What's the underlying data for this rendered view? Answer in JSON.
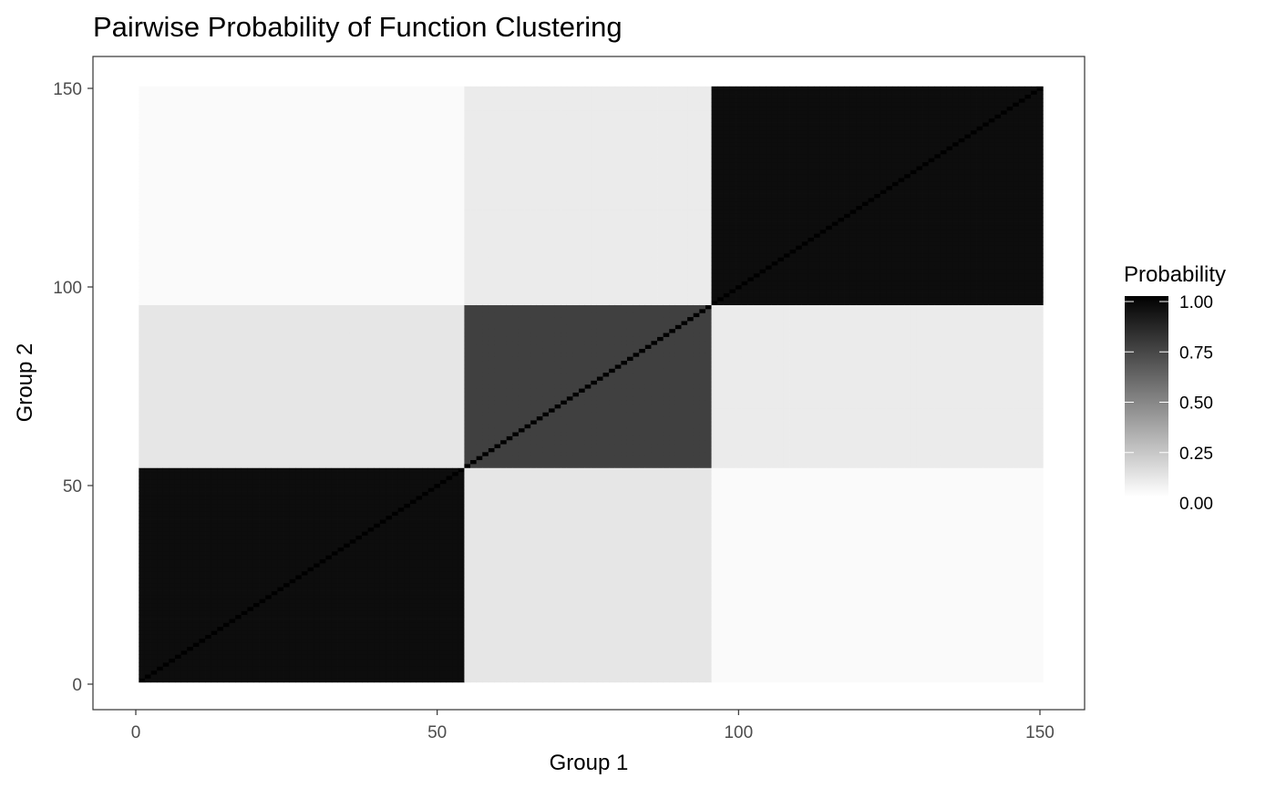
{
  "chart_data": {
    "type": "heatmap",
    "title": "Pairwise Probability of Function Clustering",
    "xlabel": "Group 1",
    "ylabel": "Group 2",
    "n": 150,
    "xlim": [
      0,
      150
    ],
    "ylim": [
      0,
      150
    ],
    "x_ticks": [
      0,
      50,
      100,
      150
    ],
    "y_ticks": [
      0,
      50,
      100,
      150
    ],
    "x_tick_labels": [
      "0",
      "50",
      "100",
      "150"
    ],
    "y_tick_labels": [
      "0",
      "50",
      "100",
      "150"
    ],
    "clusters": [
      {
        "from": 1,
        "to": 54,
        "within_probability": 0.95
      },
      {
        "from": 55,
        "to": 95,
        "within_probability": 0.75
      },
      {
        "from": 96,
        "to": 150,
        "within_probability": 0.95
      }
    ],
    "between_probability": [
      {
        "clusters": [
          1,
          2
        ],
        "probability": 0.1
      },
      {
        "clusters": [
          1,
          3
        ],
        "probability": 0.02
      },
      {
        "clusters": [
          2,
          3
        ],
        "probability": 0.08
      }
    ],
    "diagonal_value": 1.0,
    "grid": false,
    "legend": {
      "title": "Probability",
      "placement": "right",
      "breaks": [
        1.0,
        0.75,
        0.5,
        0.25,
        0.0
      ],
      "labels": [
        "1.00",
        "0.75",
        "0.50",
        "0.25",
        "0.00"
      ],
      "low_color": "#ffffff",
      "high_color": "#000000"
    }
  }
}
